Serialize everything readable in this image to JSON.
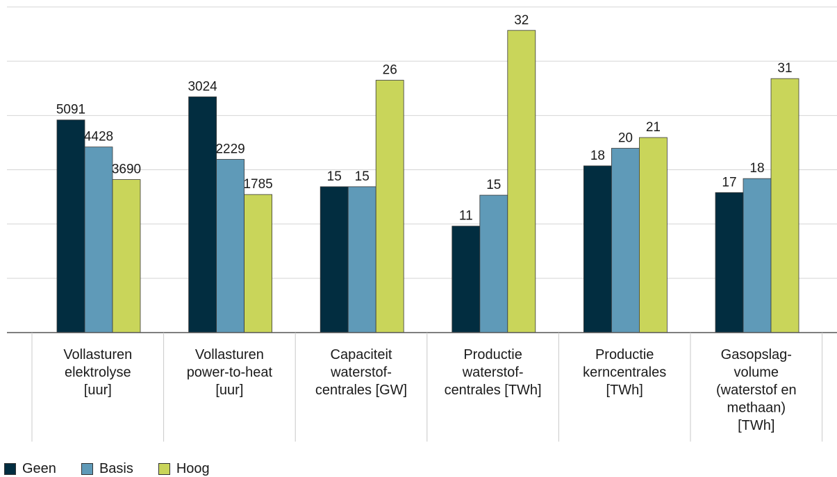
{
  "chart_data": {
    "type": "bar",
    "categories": [
      [
        "Vollasturen",
        "elektrolyse",
        "[uur]"
      ],
      [
        "Vollasturen",
        "power-to-heat",
        "[uur]"
      ],
      [
        "Capaciteit",
        "waterstof-",
        "centrales [GW]"
      ],
      [
        "Productie",
        "waterstof-",
        "centrales [TWh]"
      ],
      [
        "Productie",
        "kerncentrales",
        "[TWh]"
      ],
      [
        "Gasopslag-",
        "volume",
        "(waterstof en",
        "methaan)",
        "[TWh]"
      ]
    ],
    "series": [
      {
        "name": "Geen",
        "color": "#022d40",
        "values": [
          5091,
          3024,
          15,
          11,
          18,
          17
        ]
      },
      {
        "name": "Basis",
        "color": "#5f9ab8",
        "values": [
          4428,
          2229,
          15,
          15,
          20,
          18
        ]
      },
      {
        "name": "Hoog",
        "color": "#c9d55a",
        "values": [
          3690,
          1785,
          26,
          32,
          21,
          31
        ]
      }
    ],
    "bar_fraction": [
      [
        0.653,
        0.57,
        0.47
      ],
      [
        0.724,
        0.532,
        0.424
      ],
      [
        0.448,
        0.448,
        0.775
      ],
      [
        0.327,
        0.422,
        0.928
      ],
      [
        0.512,
        0.566,
        0.599
      ],
      [
        0.43,
        0.473,
        0.78
      ]
    ],
    "grid": true,
    "legend_position": "bottom-left"
  }
}
